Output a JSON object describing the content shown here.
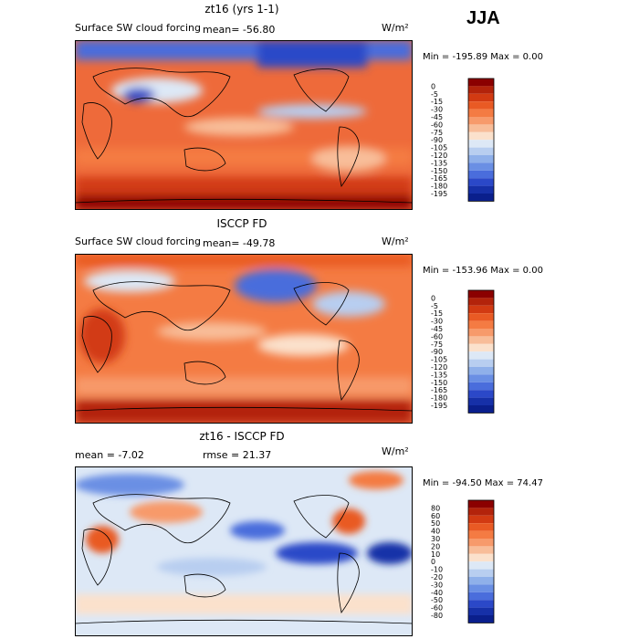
{
  "season": "JJA",
  "panels": [
    {
      "title": "zt16 (yrs 1-1)",
      "label": "Surface SW cloud forcing",
      "mean_text": "mean=  -56.80",
      "units": "W/m²",
      "minmax_text": "Min = -195.89  Max =    0.00",
      "colorbar": {
        "labels": [
          "0",
          "-5",
          "-15",
          "-30",
          "-45",
          "-60",
          "-75",
          "-90",
          "-105",
          "-120",
          "-135",
          "-150",
          "-165",
          "-180",
          "-195"
        ],
        "colors": [
          "#8b0000",
          "#b3230b",
          "#d23a12",
          "#e95a24",
          "#f47b43",
          "#f79a6b",
          "#f8bd99",
          "#fbe1cc",
          "#dde8f6",
          "#b8cef0",
          "#8fb0ea",
          "#6a8fe4",
          "#4a6ddc",
          "#2b48c8",
          "#1630a8",
          "#0a1f8c"
        ]
      }
    },
    {
      "title": "ISCCP FD",
      "label": "Surface SW cloud forcing",
      "mean_text": "mean=  -49.78",
      "units": "W/m²",
      "minmax_text": "Min = -153.96  Max =    0.00",
      "colorbar": {
        "labels": [
          "0",
          "-5",
          "-15",
          "-30",
          "-45",
          "-60",
          "-75",
          "-90",
          "-105",
          "-120",
          "-135",
          "-150",
          "-165",
          "-180",
          "-195"
        ],
        "colors": [
          "#8b0000",
          "#b3230b",
          "#d23a12",
          "#e95a24",
          "#f47b43",
          "#f79a6b",
          "#f8bd99",
          "#fbe1cc",
          "#dde8f6",
          "#b8cef0",
          "#8fb0ea",
          "#6a8fe4",
          "#4a6ddc",
          "#2b48c8",
          "#1630a8",
          "#0a1f8c"
        ]
      }
    },
    {
      "title": "zt16 - ISCCP FD",
      "label": "mean =    -7.02",
      "mean_text": "rmse =   21.37",
      "units": "W/m²",
      "minmax_text": "Min = -94.50  Max =  74.47",
      "colorbar": {
        "labels": [
          "80",
          "60",
          "50",
          "40",
          "30",
          "20",
          "10",
          "0",
          "-10",
          "-20",
          "-30",
          "-40",
          "-50",
          "-60",
          "-80"
        ],
        "colors": [
          "#8b0000",
          "#b3230b",
          "#d23a12",
          "#e95a24",
          "#f47b43",
          "#f79a6b",
          "#f8bd99",
          "#fbe1cc",
          "#dde8f6",
          "#b8cef0",
          "#8fb0ea",
          "#6a8fe4",
          "#4a6ddc",
          "#2b48c8",
          "#1630a8",
          "#0a1f8c"
        ]
      }
    }
  ],
  "chart_data": [
    {
      "type": "heatmap",
      "title": "zt16 (yrs 1-1)",
      "variable": "Surface SW cloud forcing",
      "units": "W/m2",
      "mean": -56.8,
      "min": -195.89,
      "max": 0.0,
      "contour_levels": [
        0,
        -5,
        -15,
        -30,
        -45,
        -60,
        -75,
        -90,
        -105,
        -120,
        -135,
        -150,
        -165,
        -180,
        -195
      ]
    },
    {
      "type": "heatmap",
      "title": "ISCCP FD",
      "variable": "Surface SW cloud forcing",
      "units": "W/m2",
      "mean": -49.78,
      "min": -153.96,
      "max": 0.0,
      "contour_levels": [
        0,
        -5,
        -15,
        -30,
        -45,
        -60,
        -75,
        -90,
        -105,
        -120,
        -135,
        -150,
        -165,
        -180,
        -195
      ]
    },
    {
      "type": "heatmap",
      "title": "zt16 - ISCCP FD",
      "units": "W/m2",
      "mean": -7.02,
      "rmse": 21.37,
      "min": -94.5,
      "max": 74.47,
      "contour_levels": [
        80,
        60,
        50,
        40,
        30,
        20,
        10,
        0,
        -10,
        -20,
        -30,
        -40,
        -50,
        -60,
        -80
      ]
    }
  ]
}
